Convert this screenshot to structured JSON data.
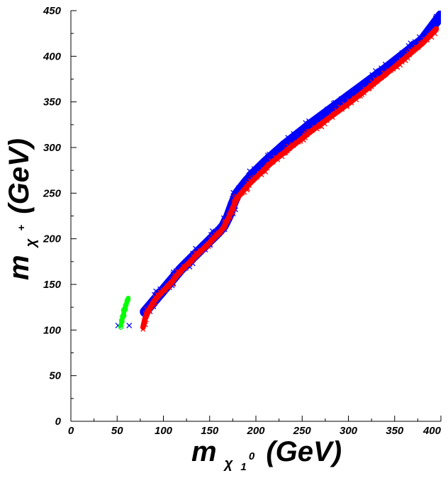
{
  "chart_data": {
    "type": "scatter",
    "title": "",
    "xlabel": {
      "main": "m",
      "subscript": "χ",
      "sub_index": "1",
      "sub_sup": "0",
      "unit": "(GeV)"
    },
    "ylabel": {
      "main": "m",
      "subscript": "χ",
      "sub_sup": "+",
      "unit": "(GeV)"
    },
    "xlim": [
      0,
      400
    ],
    "ylim": [
      0,
      450
    ],
    "x_ticks": [
      0,
      50,
      100,
      150,
      200,
      250,
      300,
      350,
      400
    ],
    "y_ticks": [
      0,
      50,
      100,
      150,
      200,
      250,
      300,
      350,
      400,
      450
    ],
    "x_tick_labels": [
      "0",
      "50",
      "100",
      "150",
      "200",
      "250",
      "300",
      "350",
      "400"
    ],
    "y_tick_labels": [
      "0",
      "50",
      "100",
      "150",
      "200",
      "250",
      "300",
      "350",
      "400",
      "450"
    ],
    "grid": false,
    "legend": "none",
    "series": [
      {
        "color": "#0000ff",
        "marker": "cross",
        "band_width": 6.5,
        "x": [
          80,
          90,
          100,
          110,
          120,
          130,
          140,
          150,
          160,
          165,
          170,
          175,
          180,
          190,
          200,
          210,
          220,
          230,
          240,
          250,
          260,
          280,
          300,
          320,
          340,
          360,
          380,
          400
        ],
        "y": [
          120,
          132,
          144,
          156,
          168,
          178,
          188,
          198,
          208,
          214,
          224,
          238,
          250,
          263,
          274,
          284,
          293,
          302,
          310,
          318,
          326,
          341,
          356,
          371,
          386,
          402,
          418,
          445
        ],
        "extra_points": [
          [
            51,
            105
          ],
          [
            63,
            105
          ]
        ]
      },
      {
        "color": "#ff0000",
        "marker": "cross",
        "band_width": 3.5,
        "x": [
          78,
          80,
          85,
          90,
          100,
          110,
          120,
          130,
          140,
          150,
          160,
          165,
          170,
          175,
          180,
          190,
          200,
          210,
          220,
          230,
          240,
          250,
          260,
          280,
          300,
          320,
          340,
          360,
          380,
          395
        ],
        "y": [
          103,
          112,
          123,
          132,
          143,
          154,
          166,
          176,
          186,
          196,
          206,
          212,
          222,
          234,
          245,
          257,
          267,
          277,
          286,
          294,
          302,
          310,
          318,
          333,
          348,
          364,
          380,
          397,
          414,
          430
        ]
      },
      {
        "color": "#00ff00",
        "marker": "circle",
        "band_width": 3,
        "x": [
          54,
          55,
          56,
          57,
          58,
          59,
          60,
          61,
          62
        ],
        "y": [
          105,
          110,
          114,
          118,
          122,
          126,
          129,
          132,
          135
        ]
      }
    ]
  }
}
